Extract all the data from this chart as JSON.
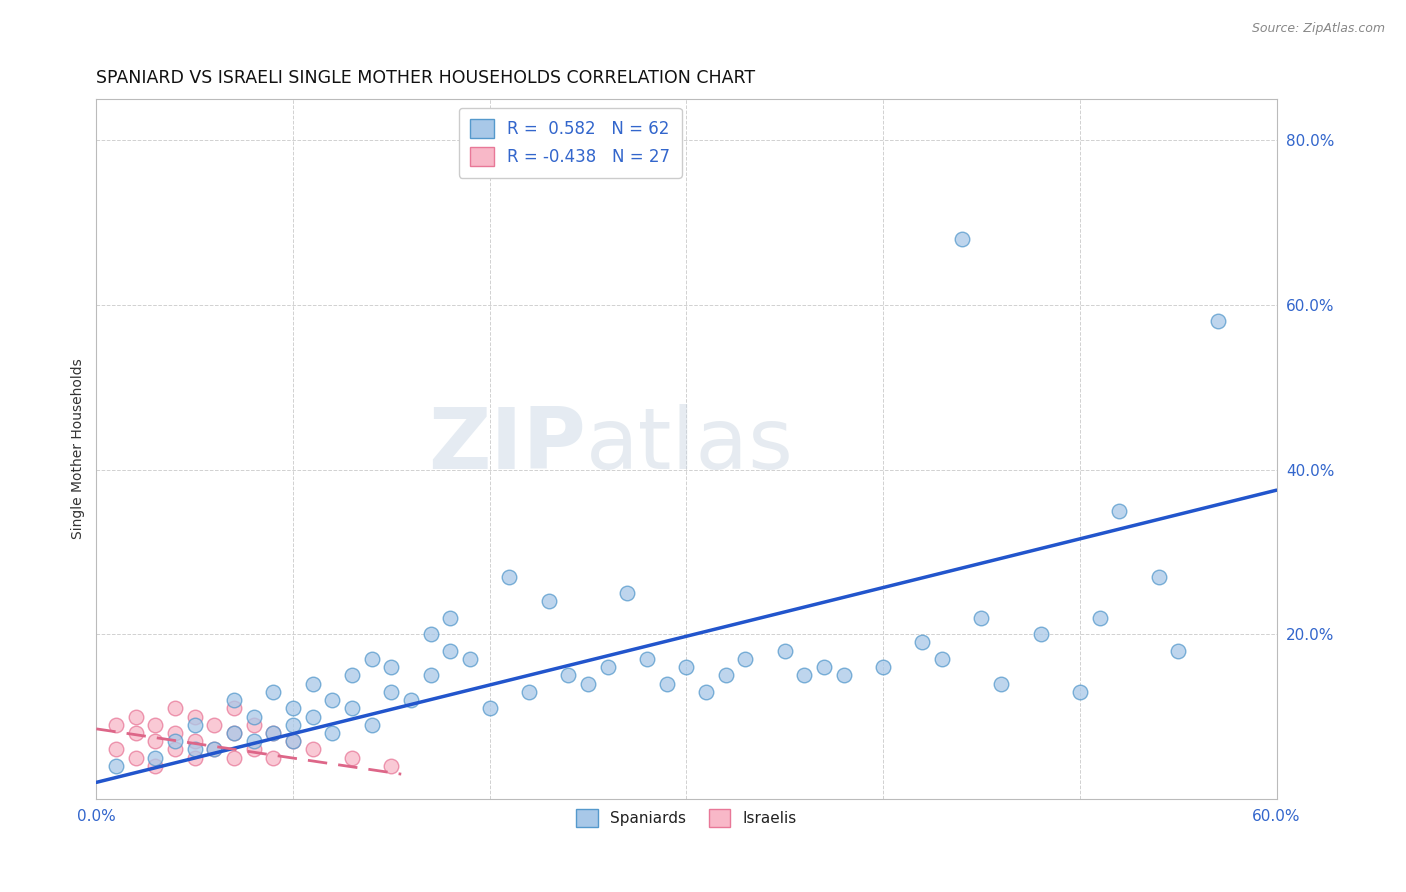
{
  "title": "SPANIARD VS ISRAELI SINGLE MOTHER HOUSEHOLDS CORRELATION CHART",
  "source": "Source: ZipAtlas.com",
  "ylabel": "Single Mother Households",
  "xlim": [
    0.0,
    0.6
  ],
  "ylim": [
    0.0,
    0.85
  ],
  "xtick_vals": [
    0.0,
    0.1,
    0.2,
    0.3,
    0.4,
    0.5,
    0.6
  ],
  "ytick_vals": [
    0.0,
    0.2,
    0.4,
    0.6,
    0.8
  ],
  "spaniard_color": "#a8c8e8",
  "spaniard_edge": "#5599cc",
  "israeli_color": "#f8b8c8",
  "israeli_edge": "#e87898",
  "trend_blue": "#2255cc",
  "trend_pink": "#dd6688",
  "tick_color": "#3366cc",
  "R_spaniard": 0.582,
  "N_spaniard": 62,
  "R_israeli": -0.438,
  "N_israeli": 27,
  "watermark_zip": "ZIP",
  "watermark_atlas": "atlas",
  "background_color": "#ffffff",
  "grid_color": "#cccccc",
  "spaniard_x": [
    0.01,
    0.03,
    0.04,
    0.05,
    0.05,
    0.06,
    0.07,
    0.07,
    0.08,
    0.08,
    0.09,
    0.09,
    0.1,
    0.1,
    0.1,
    0.11,
    0.11,
    0.12,
    0.12,
    0.13,
    0.13,
    0.14,
    0.14,
    0.15,
    0.15,
    0.16,
    0.17,
    0.17,
    0.18,
    0.18,
    0.19,
    0.2,
    0.21,
    0.22,
    0.23,
    0.24,
    0.25,
    0.26,
    0.27,
    0.28,
    0.29,
    0.3,
    0.31,
    0.32,
    0.33,
    0.35,
    0.36,
    0.37,
    0.38,
    0.4,
    0.42,
    0.43,
    0.44,
    0.45,
    0.46,
    0.48,
    0.5,
    0.51,
    0.52,
    0.54,
    0.55,
    0.57
  ],
  "spaniard_y": [
    0.04,
    0.05,
    0.07,
    0.06,
    0.09,
    0.06,
    0.08,
    0.12,
    0.07,
    0.1,
    0.08,
    0.13,
    0.07,
    0.09,
    0.11,
    0.1,
    0.14,
    0.08,
    0.12,
    0.11,
    0.15,
    0.09,
    0.17,
    0.13,
    0.16,
    0.12,
    0.2,
    0.15,
    0.18,
    0.22,
    0.17,
    0.11,
    0.27,
    0.13,
    0.24,
    0.15,
    0.14,
    0.16,
    0.25,
    0.17,
    0.14,
    0.16,
    0.13,
    0.15,
    0.17,
    0.18,
    0.15,
    0.16,
    0.15,
    0.16,
    0.19,
    0.17,
    0.68,
    0.22,
    0.14,
    0.2,
    0.13,
    0.22,
    0.35,
    0.27,
    0.18,
    0.58
  ],
  "israeli_x": [
    0.01,
    0.01,
    0.02,
    0.02,
    0.02,
    0.03,
    0.03,
    0.03,
    0.04,
    0.04,
    0.04,
    0.05,
    0.05,
    0.05,
    0.06,
    0.06,
    0.07,
    0.07,
    0.07,
    0.08,
    0.08,
    0.09,
    0.09,
    0.1,
    0.11,
    0.13,
    0.15
  ],
  "israeli_y": [
    0.06,
    0.09,
    0.05,
    0.08,
    0.1,
    0.04,
    0.07,
    0.09,
    0.06,
    0.08,
    0.11,
    0.05,
    0.07,
    0.1,
    0.06,
    0.09,
    0.05,
    0.08,
    0.11,
    0.06,
    0.09,
    0.05,
    0.08,
    0.07,
    0.06,
    0.05,
    0.04
  ],
  "blue_trend_x": [
    0.0,
    0.6
  ],
  "blue_trend_y": [
    0.02,
    0.375
  ],
  "pink_trend_x": [
    0.0,
    0.155
  ],
  "pink_trend_y": [
    0.085,
    0.03
  ]
}
